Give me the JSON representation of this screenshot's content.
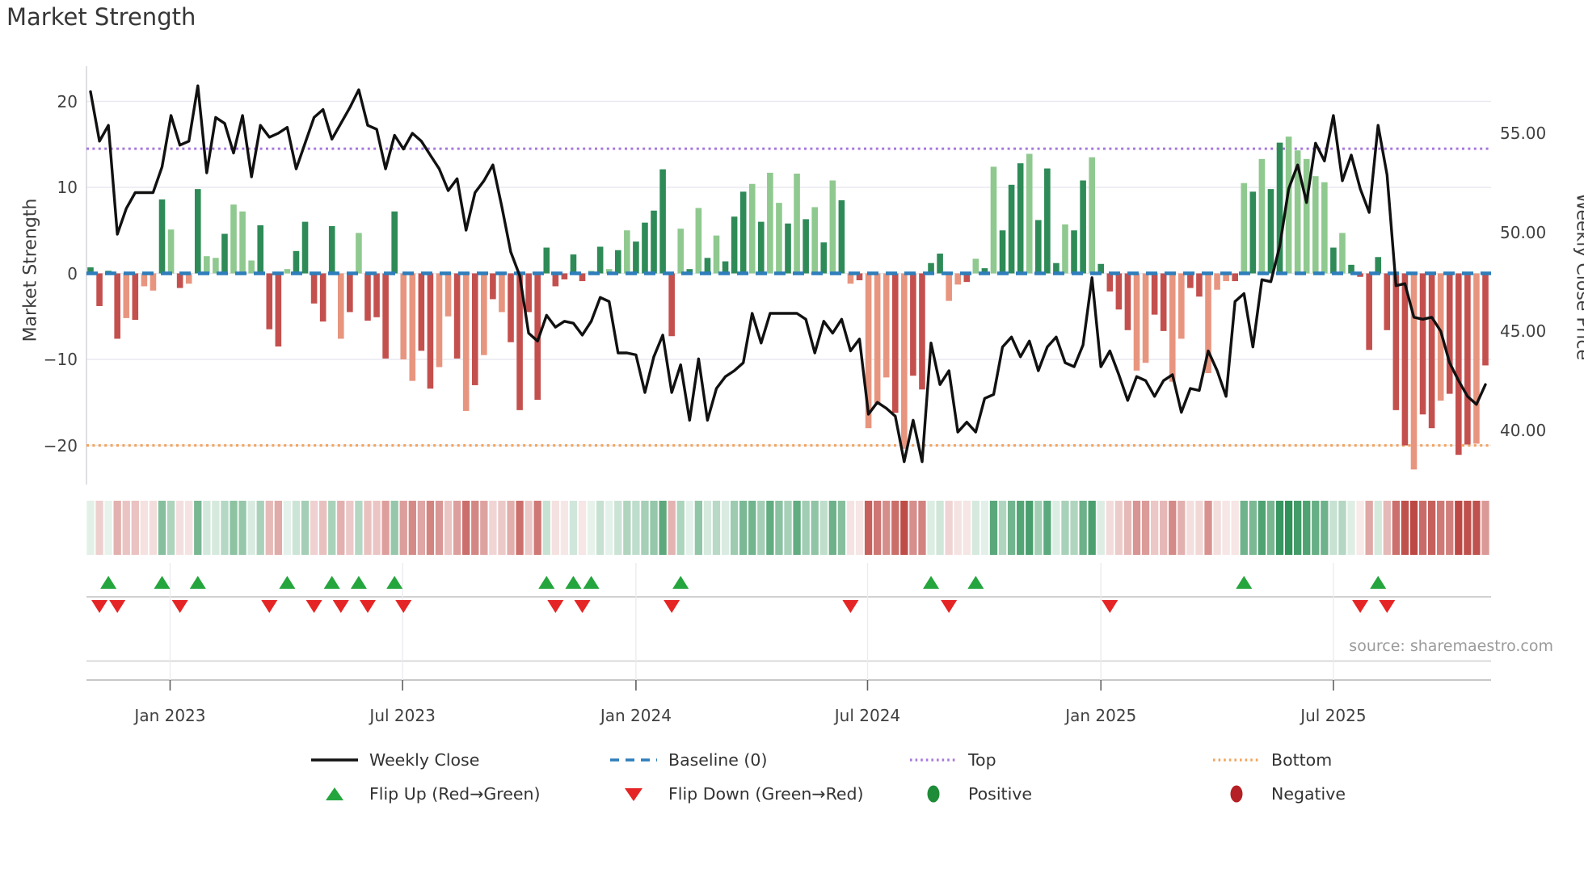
{
  "title": "Market Strength",
  "source": "source: sharemaestro.com",
  "axes": {
    "left_label": "Market Strength",
    "right_label": "Weekly Close Price",
    "left_ticks": {
      "values": [
        20,
        10,
        0,
        -10,
        -20
      ],
      "labels": [
        "20",
        "10",
        "0",
        "−10",
        "−20"
      ]
    },
    "right_ticks": {
      "values": [
        55,
        50,
        45,
        40
      ],
      "labels": [
        "55.00",
        "50.00",
        "45.00",
        "40.00"
      ]
    },
    "x_ticks": {
      "week_index": [
        8.9,
        34.9,
        61.0,
        86.9,
        113.0,
        139.0
      ],
      "labels": [
        "Jan 2023",
        "Jul 2023",
        "Jan 2024",
        "Jul 2024",
        "Jan 2025",
        "Jul 2025"
      ]
    }
  },
  "legend": {
    "weekly_close": "Weekly Close",
    "baseline": "Baseline (0)",
    "top": "Top",
    "bottom": "Bottom",
    "flip_up": "Flip Up (Red→Green)",
    "flip_down": "Flip Down (Green→Red)",
    "positive": "Positive",
    "negative": "Negative"
  },
  "colors": {
    "bar_green_dark": "#2e8b57",
    "bar_green_light": "#8fc98f",
    "bar_red_dark": "#c4504e",
    "bar_red_light": "#e8957f",
    "baseline_blue": "#2e7ebb",
    "top_purple": "#a678dd",
    "bottom_orange": "#f2a45e",
    "price_line": "#111111",
    "flip_up_green": "#25a53d",
    "flip_down_red": "#e52525",
    "positive_dot": "#1e8c38",
    "negative_dot": "#b42025",
    "grid": "#e9e9f0",
    "panel_line": "#c2c2c2"
  },
  "chart_data": {
    "type": "bar+line",
    "title": "Market Strength",
    "n_weeks": 157,
    "baseline_value": 0,
    "top_line_value": 14.5,
    "bottom_line_value": -20,
    "left_ylim": [
      -25,
      23
    ],
    "right_ylim": [
      38,
      58.5
    ],
    "grid": true,
    "strength_values": [
      0.7,
      -3.8,
      0.3,
      -7.6,
      -5.2,
      -5.4,
      -1.5,
      -2.0,
      8.6,
      5.1,
      -1.7,
      -1.2,
      9.8,
      2.0,
      1.8,
      4.6,
      8.0,
      7.2,
      1.5,
      5.6,
      -6.5,
      -8.5,
      0.5,
      2.6,
      6.0,
      -3.5,
      -5.6,
      5.5,
      -7.6,
      -4.5,
      4.7,
      -5.5,
      -5.1,
      -9.9,
      7.2,
      -10.0,
      -12.5,
      -9.0,
      -13.4,
      -10.9,
      -5.0,
      -9.9,
      -16.0,
      -13.0,
      -9.5,
      -3.0,
      -4.5,
      -8.0,
      -15.9,
      -4.5,
      -14.7,
      3.0,
      -1.5,
      -0.7,
      2.2,
      -0.9,
      0.3,
      3.1,
      0.5,
      2.7,
      5.0,
      3.7,
      5.9,
      7.3,
      12.1,
      -7.3,
      5.2,
      0.5,
      7.6,
      1.8,
      4.4,
      1.4,
      6.6,
      9.5,
      10.4,
      6.0,
      11.7,
      8.2,
      5.8,
      11.6,
      6.3,
      7.7,
      3.6,
      10.8,
      8.5,
      -1.2,
      -0.8,
      -18.0,
      -15.1,
      -12.1,
      -16.2,
      -20.4,
      -11.9,
      -13.5,
      1.2,
      2.3,
      -3.2,
      -1.3,
      -1.0,
      1.7,
      0.6,
      12.4,
      5.0,
      10.3,
      12.8,
      13.9,
      6.2,
      12.2,
      1.2,
      5.7,
      5.0,
      10.8,
      13.5,
      1.1,
      -2.1,
      -4.2,
      -6.6,
      -11.3,
      -10.4,
      -4.8,
      -6.7,
      -12.6,
      -7.6,
      -1.7,
      -2.7,
      -11.6,
      -1.9,
      -0.9,
      -0.9,
      10.5,
      9.5,
      13.3,
      9.8,
      15.2,
      15.9,
      14.3,
      13.3,
      11.3,
      10.6,
      3.0,
      4.7,
      1.0,
      -0.4,
      -8.9,
      1.9,
      -6.6,
      -15.9,
      -20.0,
      -22.8,
      -16.4,
      -18.0,
      -14.8,
      -14.0,
      -21.1,
      -19.9,
      -19.8,
      -10.7
    ],
    "strength_shade": "ddddldlldldldlldllldddldddddldlddddllddlldldldldddddddddldldldddddldldldddldlldldldldldllldlddddlldldldddldddlddlddddllddllddllldldlddllllldldddddddlddldddl",
    "close_prices": [
      57.1,
      54.6,
      55.4,
      49.9,
      51.2,
      52.0,
      52.0,
      52.0,
      53.3,
      55.9,
      54.4,
      54.6,
      57.4,
      53.0,
      55.8,
      55.5,
      54.0,
      55.9,
      52.8,
      55.4,
      54.8,
      55.0,
      55.3,
      53.2,
      54.5,
      55.8,
      56.2,
      54.7,
      55.5,
      56.3,
      57.2,
      55.4,
      55.2,
      53.2,
      54.9,
      54.2,
      55.0,
      54.6,
      53.9,
      53.2,
      52.1,
      52.7,
      50.1,
      52.0,
      52.6,
      53.4,
      51.3,
      49.0,
      47.8,
      44.9,
      44.5,
      45.8,
      45.2,
      45.5,
      45.4,
      44.8,
      45.5,
      46.7,
      46.5,
      43.9,
      43.9,
      43.8,
      41.9,
      43.7,
      44.8,
      41.9,
      43.3,
      40.5,
      43.6,
      40.5,
      42.1,
      42.7,
      43.0,
      43.4,
      45.9,
      44.4,
      45.9,
      45.9,
      45.9,
      45.9,
      45.6,
      43.9,
      45.5,
      44.9,
      45.6,
      44.0,
      44.6,
      40.8,
      41.4,
      41.1,
      40.7,
      38.4,
      40.5,
      38.4,
      44.4,
      42.3,
      43.0,
      39.9,
      40.4,
      39.9,
      41.6,
      41.8,
      44.2,
      44.7,
      43.7,
      44.5,
      43.0,
      44.2,
      44.7,
      43.4,
      43.2,
      44.3,
      47.7,
      43.2,
      44.0,
      42.8,
      41.5,
      42.7,
      42.5,
      41.7,
      42.5,
      42.8,
      40.9,
      42.1,
      42.0,
      44.0,
      43.0,
      41.7,
      46.5,
      46.9,
      44.2,
      47.6,
      47.5,
      49.3,
      52.2,
      53.4,
      51.5,
      54.5,
      53.6,
      55.9,
      52.6,
      53.9,
      52.2,
      51.0,
      55.4,
      52.9,
      47.3,
      47.4,
      45.7,
      45.6,
      45.7,
      45.0,
      43.4,
      42.5,
      41.7,
      41.3,
      42.3
    ],
    "flip_up_weeks": [
      2,
      8,
      12,
      22,
      27,
      30,
      34,
      51,
      54,
      56,
      66,
      94,
      99,
      129,
      144
    ],
    "flip_down_weeks": [
      1,
      3,
      10,
      20,
      25,
      28,
      31,
      35,
      52,
      55,
      65,
      85,
      96,
      114,
      142,
      145
    ],
    "legend_position": "bottom",
    "heatmap_strip": "same weekly strength values rendered as red-green color strip"
  }
}
